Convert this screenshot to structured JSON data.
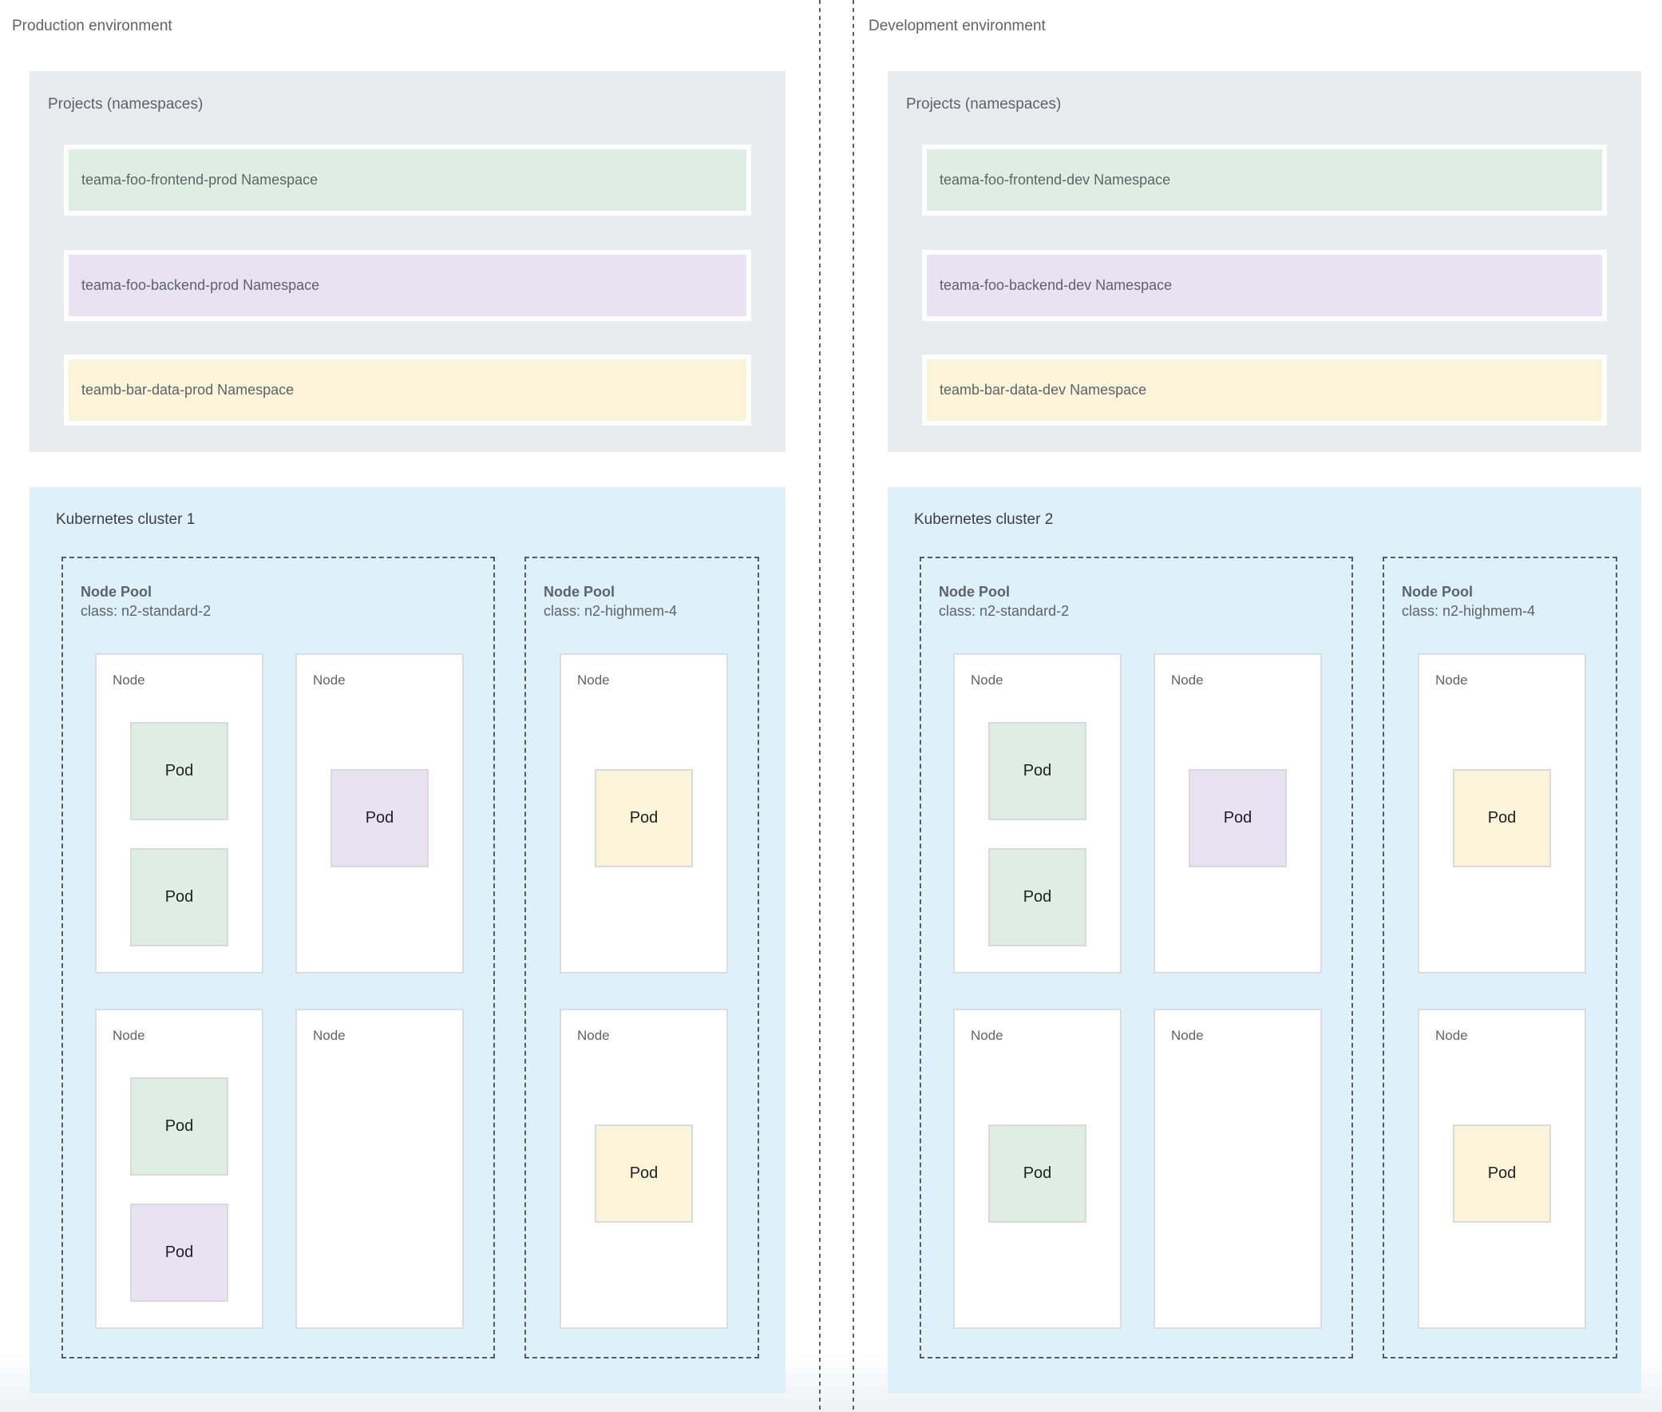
{
  "colors": {
    "projects_bg": "#e9ecee",
    "cluster_bg": "#def0fa",
    "namespace_green": "#dfeee5",
    "namespace_purple": "#e8e2f3",
    "namespace_yellow": "#fbf4d8"
  },
  "environments": [
    {
      "label": "Production environment",
      "projects": {
        "title": "Projects (namespaces)",
        "namespaces": [
          {
            "label": "teama-foo-frontend-prod Namespace",
            "color": "#dfeee5"
          },
          {
            "label": "teama-foo-backend-prod Namespace",
            "color": "#e8e2f3"
          },
          {
            "label": "teamb-bar-data-prod Namespace",
            "color": "#fbf4d8"
          }
        ]
      },
      "cluster": {
        "title": "Kubernetes cluster 1",
        "pools": [
          {
            "title": "Node Pool",
            "class_line": "class: n2-standard-2",
            "nodes": [
              {
                "label": "Node",
                "pods": [
                  {
                    "label": "Pod",
                    "color": "#dfeee5"
                  },
                  {
                    "label": "Pod",
                    "color": "#dfeee5"
                  }
                ]
              },
              {
                "label": "Node",
                "pods": [
                  {
                    "label": "Pod",
                    "color": "#e8e2f3"
                  }
                ]
              },
              {
                "label": "Node",
                "pods": [
                  {
                    "label": "Pod",
                    "color": "#dfeee5"
                  },
                  {
                    "label": "Pod",
                    "color": "#e8e2f3"
                  }
                ]
              },
              {
                "label": "Node",
                "pods": []
              }
            ]
          },
          {
            "title": "Node Pool",
            "class_line": "class: n2-highmem-4",
            "nodes": [
              {
                "label": "Node",
                "pods": [
                  {
                    "label": "Pod",
                    "color": "#fbf4d8"
                  }
                ]
              },
              {
                "label": "Node",
                "pods": [
                  {
                    "label": "Pod",
                    "color": "#fbf4d8"
                  }
                ]
              }
            ]
          }
        ]
      }
    },
    {
      "label": "Development environment",
      "projects": {
        "title": "Projects (namespaces)",
        "namespaces": [
          {
            "label": "teama-foo-frontend-dev Namespace",
            "color": "#dfeee5"
          },
          {
            "label": "teama-foo-backend-dev Namespace",
            "color": "#e8e2f3"
          },
          {
            "label": "teamb-bar-data-dev Namespace",
            "color": "#fbf4d8"
          }
        ]
      },
      "cluster": {
        "title": "Kubernetes cluster 2",
        "pools": [
          {
            "title": "Node Pool",
            "class_line": "class: n2-standard-2",
            "nodes": [
              {
                "label": "Node",
                "pods": [
                  {
                    "label": "Pod",
                    "color": "#dfeee5"
                  },
                  {
                    "label": "Pod",
                    "color": "#dfeee5"
                  }
                ]
              },
              {
                "label": "Node",
                "pods": [
                  {
                    "label": "Pod",
                    "color": "#e8e2f3"
                  }
                ]
              },
              {
                "label": "Node",
                "pods": [
                  {
                    "label": "Pod",
                    "color": "#dfeee5"
                  }
                ]
              },
              {
                "label": "Node",
                "pods": []
              }
            ]
          },
          {
            "title": "Node Pool",
            "class_line": "class: n2-highmem-4",
            "nodes": [
              {
                "label": "Node",
                "pods": [
                  {
                    "label": "Pod",
                    "color": "#fbf4d8"
                  }
                ]
              },
              {
                "label": "Node",
                "pods": [
                  {
                    "label": "Pod",
                    "color": "#fbf4d8"
                  }
                ]
              }
            ]
          }
        ]
      }
    }
  ]
}
